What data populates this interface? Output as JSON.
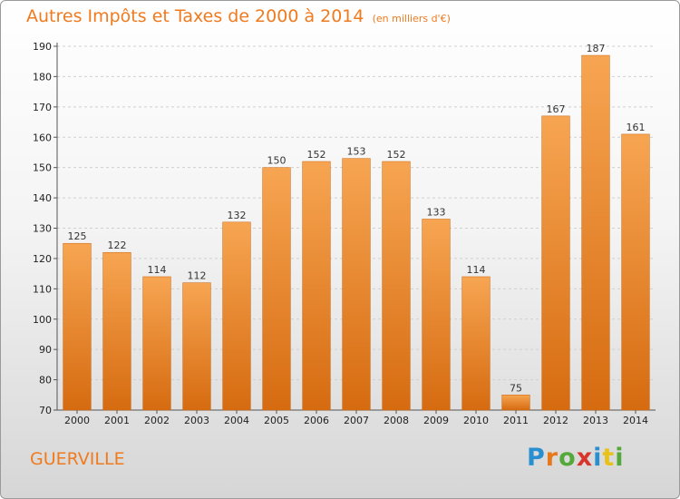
{
  "header": {
    "title": "Autres Impôts et Taxes de 2000 à 2014",
    "unit": "(en milliers d'€)"
  },
  "footer": {
    "city": "GUERVILLE",
    "logo": "Proxiti",
    "logo_colors": [
      "#2a8fd0",
      "#e8791a",
      "#55a83a",
      "#d8342c",
      "#2a8fd0",
      "#e8c21a",
      "#55a83a"
    ]
  },
  "chart_data": {
    "type": "bar",
    "categories": [
      "2000",
      "2001",
      "2002",
      "2003",
      "2004",
      "2005",
      "2006",
      "2007",
      "2008",
      "2009",
      "2010",
      "2011",
      "2012",
      "2013",
      "2014"
    ],
    "values": [
      125,
      122,
      114,
      112,
      132,
      150,
      152,
      153,
      152,
      133,
      114,
      75,
      167,
      187,
      161
    ],
    "ylim": [
      70,
      190
    ],
    "yticks": [
      70,
      80,
      90,
      100,
      110,
      120,
      130,
      140,
      150,
      160,
      170,
      180,
      190
    ],
    "grid": true,
    "bar_color": "#f08a2a",
    "title": "Autres Impôts et Taxes de 2000 à 2014",
    "xlabel": "",
    "ylabel": ""
  }
}
